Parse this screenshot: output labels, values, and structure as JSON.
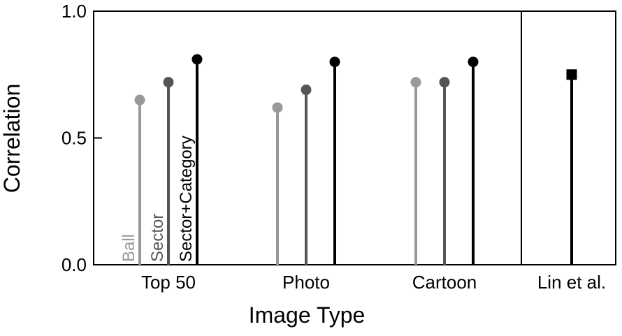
{
  "chart_data": {
    "type": "lollipop",
    "xlabel": "Image Type",
    "ylabel": "Correlation",
    "ylim": [
      0.0,
      1.0
    ],
    "yticks": [
      0.0,
      0.5,
      1.0
    ],
    "ytick_labels": [
      "0.0",
      "0.5",
      "1.0"
    ],
    "grid": false,
    "legend": "inline vertical labels on the Top 50 group",
    "categories": [
      "Top 50",
      "Photo",
      "Cartoon",
      "Lin et al."
    ],
    "series": [
      {
        "name": "Ball",
        "color": "#999999",
        "marker": "circle",
        "values": [
          0.65,
          0.62,
          0.72,
          null
        ]
      },
      {
        "name": "Sector",
        "color": "#555555",
        "marker": "circle",
        "values": [
          0.72,
          0.69,
          0.72,
          null
        ]
      },
      {
        "name": "Sector+Category",
        "color": "#000000",
        "marker": "circle",
        "values": [
          0.81,
          0.8,
          0.8,
          null
        ]
      }
    ],
    "reference": {
      "category": "Lin et al.",
      "value": 0.75,
      "color": "#000000",
      "marker": "square"
    }
  }
}
